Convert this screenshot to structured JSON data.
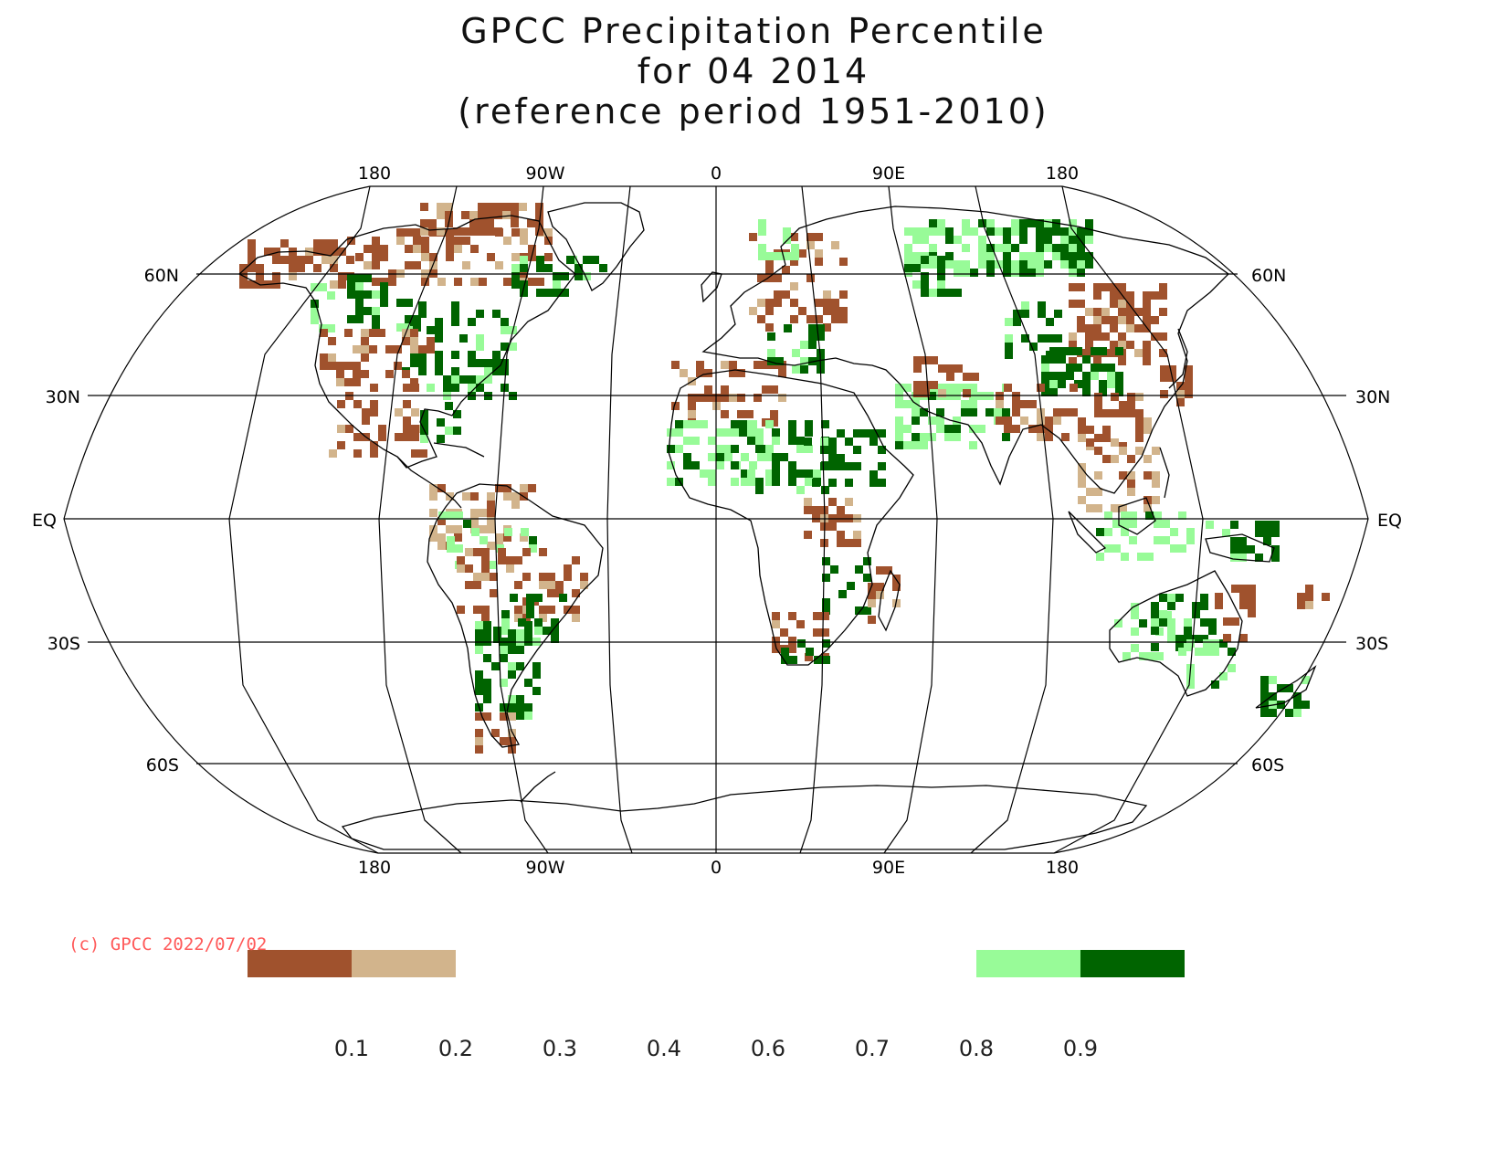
{
  "title": {
    "line1": "GPCC Precipitation Percentile",
    "line2": "for 04 2014",
    "line3": "(reference period 1951-2010)"
  },
  "lon_labels": [
    "180",
    "90W",
    "0",
    "90E",
    "180"
  ],
  "lat_labels": {
    "n60": "60N",
    "n30": "30N",
    "eq": "EQ",
    "s30": "30S",
    "s60": "60S"
  },
  "copyright": "(c) GPCC 2022/07/02",
  "legend": {
    "ticks": [
      "0.1",
      "0.2",
      "0.3",
      "0.4",
      "0.6",
      "0.7",
      "0.8",
      "0.9"
    ],
    "bins": [
      {
        "range": "< 0.1",
        "color": "#a0522d"
      },
      {
        "range": "0.1 - 0.2",
        "color": "#d2b48c"
      },
      {
        "range": "0.8 - 0.9",
        "color": "#98fb98"
      },
      {
        "range": "> 0.9",
        "color": "#006400"
      }
    ]
  },
  "map": {
    "projection": "Robinson",
    "colors": {
      "dry_extreme": "#a0522d",
      "dry": "#d2b48c",
      "wet": "#98fb98",
      "wet_extreme": "#006400"
    }
  }
}
